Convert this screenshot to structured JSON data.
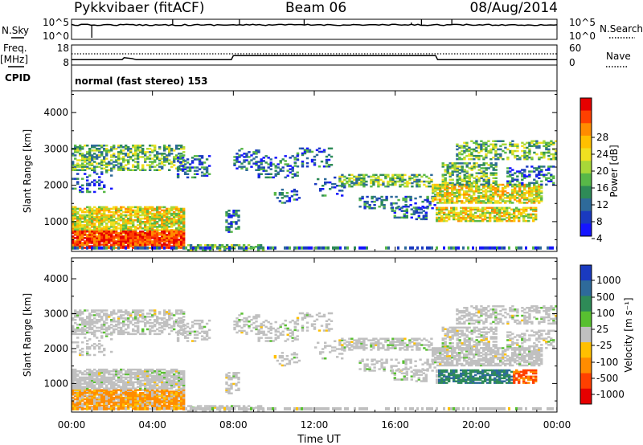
{
  "header": {
    "title": "Pykkvibaer (fitACF)",
    "beam": "Beam 06",
    "date": "08/Aug/2014"
  },
  "nsky_panel": {
    "left_label": "N.Sky",
    "right_label": "N.Search",
    "left_ticks": [
      "10^5",
      "10^0"
    ],
    "right_ticks": [
      "10^5",
      "10^0"
    ]
  },
  "freq_panel": {
    "left_label_top": "Freq.",
    "left_label_unit": "[MHz]",
    "left_ticks": [
      "18",
      "8"
    ],
    "right_ticks": [
      "60",
      "0"
    ],
    "right_label": "Nave"
  },
  "cpid_panel": {
    "label": "CPID",
    "text": "normal (fast stereo) 153"
  },
  "power_colorbar": {
    "label": "Power [dB]",
    "ticks": [
      "28",
      "24",
      "20",
      "16",
      "12",
      "8",
      "4"
    ],
    "colors": [
      "#e60000",
      "#ff4000",
      "#ff8c00",
      "#ffc000",
      "#f0e020",
      "#a8d838",
      "#58b848",
      "#2e8b57",
      "#2e6a9a",
      "#1a3ac0",
      "#1515ff"
    ]
  },
  "velocity_colorbar": {
    "label": "Velocity [m s⁻¹]",
    "ticks": [
      "1000",
      "500",
      "100",
      "25",
      "-25",
      "-100",
      "-500",
      "-1000"
    ],
    "colors": [
      "#1a3ac0",
      "#2e6a9a",
      "#2e8b57",
      "#58c030",
      "#c0c0c0",
      "#ffc000",
      "#ff8c00",
      "#ff4000",
      "#e60000"
    ]
  },
  "chart_data": [
    {
      "type": "heatmap",
      "panel": "power",
      "ylabel": "Slant Range [km]",
      "ylim": [
        180,
        4600
      ],
      "yticks": [
        1000,
        2000,
        3000,
        4000
      ],
      "xlim": [
        "00:00",
        "24:00"
      ],
      "xticks": [
        "00:00",
        "04:00",
        "08:00",
        "12:00",
        "16:00",
        "20:00",
        "00:00"
      ],
      "colorbar": "Power [dB]",
      "clim": [
        0,
        30
      ]
    },
    {
      "type": "heatmap",
      "panel": "velocity",
      "ylabel": "Slant Range [km]",
      "xlabel": "Time UT",
      "ylim": [
        180,
        4600
      ],
      "yticks": [
        1000,
        2000,
        3000,
        4000
      ],
      "xlim": [
        "00:00",
        "24:00"
      ],
      "xticks": [
        "00:00",
        "04:00",
        "08:00",
        "12:00",
        "16:00",
        "20:00",
        "00:00"
      ],
      "colorbar": "Velocity [m s⁻¹]",
      "clim": [
        -1000,
        1000
      ]
    },
    {
      "type": "line",
      "panel": "frequency",
      "ylabel": "Freq. [MHz]",
      "x_hours": [
        0,
        2.5,
        2.6,
        3.0,
        3.2,
        7.9,
        8.0,
        18.0,
        18.1,
        24.0
      ],
      "y_mhz": [
        9.5,
        9.5,
        10.5,
        10.0,
        9.5,
        9.5,
        11.5,
        11.5,
        9.5,
        9.5
      ]
    }
  ]
}
